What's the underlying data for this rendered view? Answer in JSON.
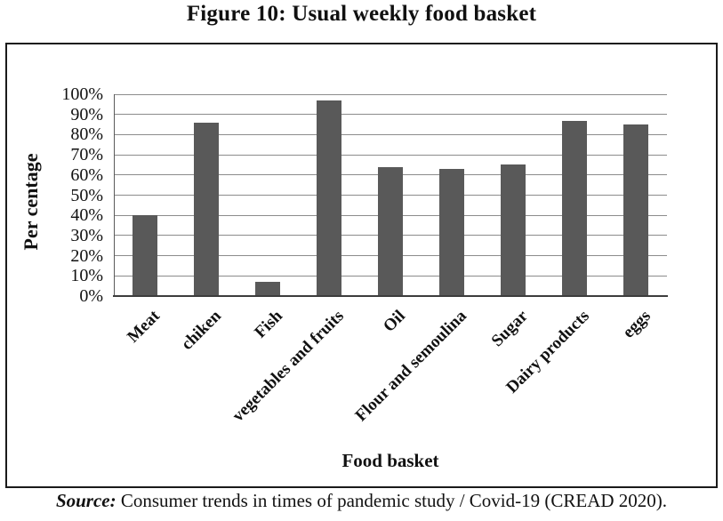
{
  "figure": {
    "title": "Figure 10: Usual weekly food basket",
    "source_label": "Source:",
    "source_text": " Consumer trends in times of pandemic study / Covid-19 (CREAD 2020)."
  },
  "chart_data": {
    "type": "bar",
    "title": "Figure 10: Usual weekly food basket",
    "categories": [
      "Meat",
      "chiken",
      "Fish",
      "vegetables and fruits",
      "Oil",
      "Flour and semoulina",
      "Sugar",
      "Dairy products",
      "eggs"
    ],
    "values": [
      40,
      86,
      7,
      97,
      64,
      63,
      65,
      87,
      85
    ],
    "xlabel": "Food basket",
    "ylabel": "Per centage",
    "ylim": [
      0,
      100
    ],
    "ytick_step": 10,
    "ytick_labels": [
      "0%",
      "10%",
      "20%",
      "30%",
      "40%",
      "50%",
      "60%",
      "70%",
      "80%",
      "90%",
      "100%"
    ],
    "grid": true,
    "legend_position": "none",
    "bar_color": "#595959",
    "gridline_color": "#8c8c8c",
    "axis_color": "#3d3d3d"
  }
}
